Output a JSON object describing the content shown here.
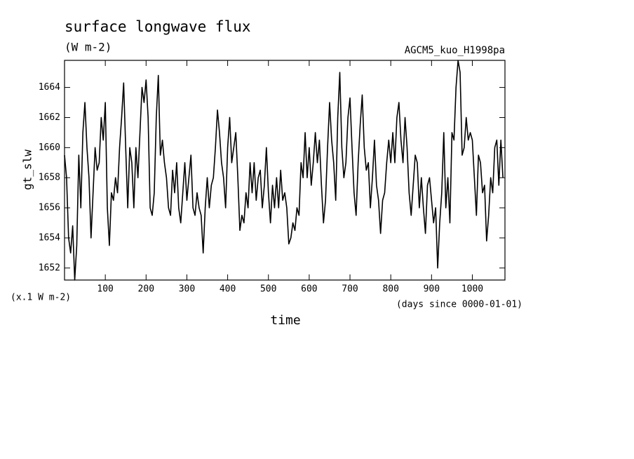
{
  "chart_data": {
    "type": "line",
    "title": "surface longwave flux",
    "subtitle": "(W m-2)",
    "annotation": "AGCM5_kuo_H1998pa",
    "y_label": "gt_slw",
    "y_unit": "(x.1 W m-2)",
    "x_label": "time",
    "x_unit": "(days since 0000-01-01)",
    "xlim": [
      0,
      1080
    ],
    "ylim": [
      1651.2,
      1665.8
    ],
    "xticks": [
      100,
      200,
      300,
      400,
      500,
      600,
      700,
      800,
      900,
      1000
    ],
    "yticks": [
      1652,
      1654,
      1656,
      1658,
      1660,
      1662,
      1664
    ],
    "grid": false,
    "x": [
      0,
      5,
      10,
      15,
      20,
      25,
      30,
      35,
      40,
      45,
      50,
      55,
      60,
      65,
      70,
      75,
      80,
      85,
      90,
      95,
      100,
      105,
      110,
      115,
      120,
      125,
      130,
      135,
      140,
      145,
      150,
      155,
      160,
      165,
      170,
      175,
      180,
      185,
      190,
      195,
      200,
      205,
      210,
      215,
      220,
      225,
      230,
      235,
      240,
      245,
      250,
      255,
      260,
      265,
      270,
      275,
      280,
      285,
      290,
      295,
      300,
      305,
      310,
      315,
      320,
      325,
      330,
      335,
      340,
      345,
      350,
      355,
      360,
      365,
      370,
      375,
      380,
      385,
      390,
      395,
      400,
      405,
      410,
      415,
      420,
      425,
      430,
      435,
      440,
      445,
      450,
      455,
      460,
      465,
      470,
      475,
      480,
      485,
      490,
      495,
      500,
      505,
      510,
      515,
      520,
      525,
      530,
      535,
      540,
      545,
      550,
      555,
      560,
      565,
      570,
      575,
      580,
      585,
      590,
      595,
      600,
      605,
      610,
      615,
      620,
      625,
      630,
      635,
      640,
      645,
      650,
      655,
      660,
      665,
      670,
      675,
      680,
      685,
      690,
      695,
      700,
      705,
      710,
      715,
      720,
      725,
      730,
      735,
      740,
      745,
      750,
      755,
      760,
      765,
      770,
      775,
      780,
      785,
      790,
      795,
      800,
      805,
      810,
      815,
      820,
      825,
      830,
      835,
      840,
      845,
      850,
      855,
      860,
      865,
      870,
      875,
      880,
      885,
      890,
      895,
      900,
      905,
      910,
      915,
      920,
      925,
      930,
      935,
      940,
      945,
      950,
      955,
      960,
      965,
      970,
      975,
      980,
      985,
      990,
      995,
      1000,
      1005,
      1010,
      1015,
      1020,
      1025,
      1030,
      1035,
      1040,
      1045,
      1050,
      1055,
      1060,
      1065,
      1070,
      1075
    ],
    "series": [
      {
        "name": "gt_slw",
        "color": "#000000",
        "values": [
          1659.5,
          1658,
          1654,
          1653,
          1654.8,
          1651.2,
          1653.5,
          1659.5,
          1656,
          1661,
          1663,
          1660,
          1658,
          1654,
          1657,
          1660,
          1658.5,
          1659,
          1662,
          1660.5,
          1663,
          1656,
          1653.5,
          1657,
          1656.5,
          1658,
          1657,
          1660,
          1662,
          1664.3,
          1660,
          1656,
          1660,
          1659,
          1656,
          1660,
          1658,
          1661,
          1664,
          1663,
          1664.5,
          1662,
          1656,
          1655.5,
          1657,
          1662,
          1664.8,
          1659.5,
          1660.5,
          1659,
          1658,
          1656,
          1655.5,
          1658.5,
          1657,
          1659,
          1656,
          1655,
          1657,
          1659,
          1656.5,
          1658,
          1659.5,
          1656,
          1655.5,
          1657,
          1656,
          1655.5,
          1653,
          1656,
          1658,
          1656,
          1657.5,
          1658,
          1660,
          1662.5,
          1661,
          1659,
          1658,
          1656,
          1660,
          1662,
          1659,
          1660,
          1661,
          1658,
          1654.5,
          1655.5,
          1655,
          1657,
          1656,
          1659,
          1657,
          1659,
          1656.5,
          1658,
          1658.5,
          1656,
          1657.5,
          1660,
          1657,
          1655,
          1657.5,
          1656,
          1658,
          1656,
          1658.5,
          1656.5,
          1657,
          1656,
          1653.6,
          1654,
          1655,
          1654.5,
          1656,
          1655.5,
          1659,
          1658,
          1661,
          1658,
          1660,
          1657.5,
          1659,
          1661,
          1659,
          1660.5,
          1657.5,
          1655,
          1656.5,
          1660,
          1663,
          1660.5,
          1659,
          1656.5,
          1662,
          1665,
          1660,
          1658,
          1659,
          1662,
          1663.3,
          1660,
          1657,
          1655.5,
          1659,
          1661.5,
          1663.5,
          1660,
          1658.5,
          1659,
          1656,
          1658,
          1660.5,
          1657.5,
          1656.5,
          1654.3,
          1656.5,
          1657,
          1659,
          1660.5,
          1659,
          1661,
          1659,
          1662,
          1663,
          1660.5,
          1659,
          1662,
          1660,
          1657,
          1655.5,
          1657.5,
          1659.5,
          1659,
          1656,
          1658,
          1656,
          1654.3,
          1657.5,
          1658,
          1656.5,
          1655,
          1656,
          1652,
          1655,
          1657,
          1661,
          1656,
          1658,
          1655,
          1661,
          1660.5,
          1664,
          1665.8,
          1665,
          1659.5,
          1660,
          1662,
          1660.5,
          1661,
          1660.5,
          1658,
          1655.5,
          1659.5,
          1659,
          1657,
          1657.5,
          1653.8,
          1655.5,
          1658,
          1657,
          1660,
          1660.5,
          1657.5,
          1660.5,
          1658
        ]
      }
    ]
  }
}
